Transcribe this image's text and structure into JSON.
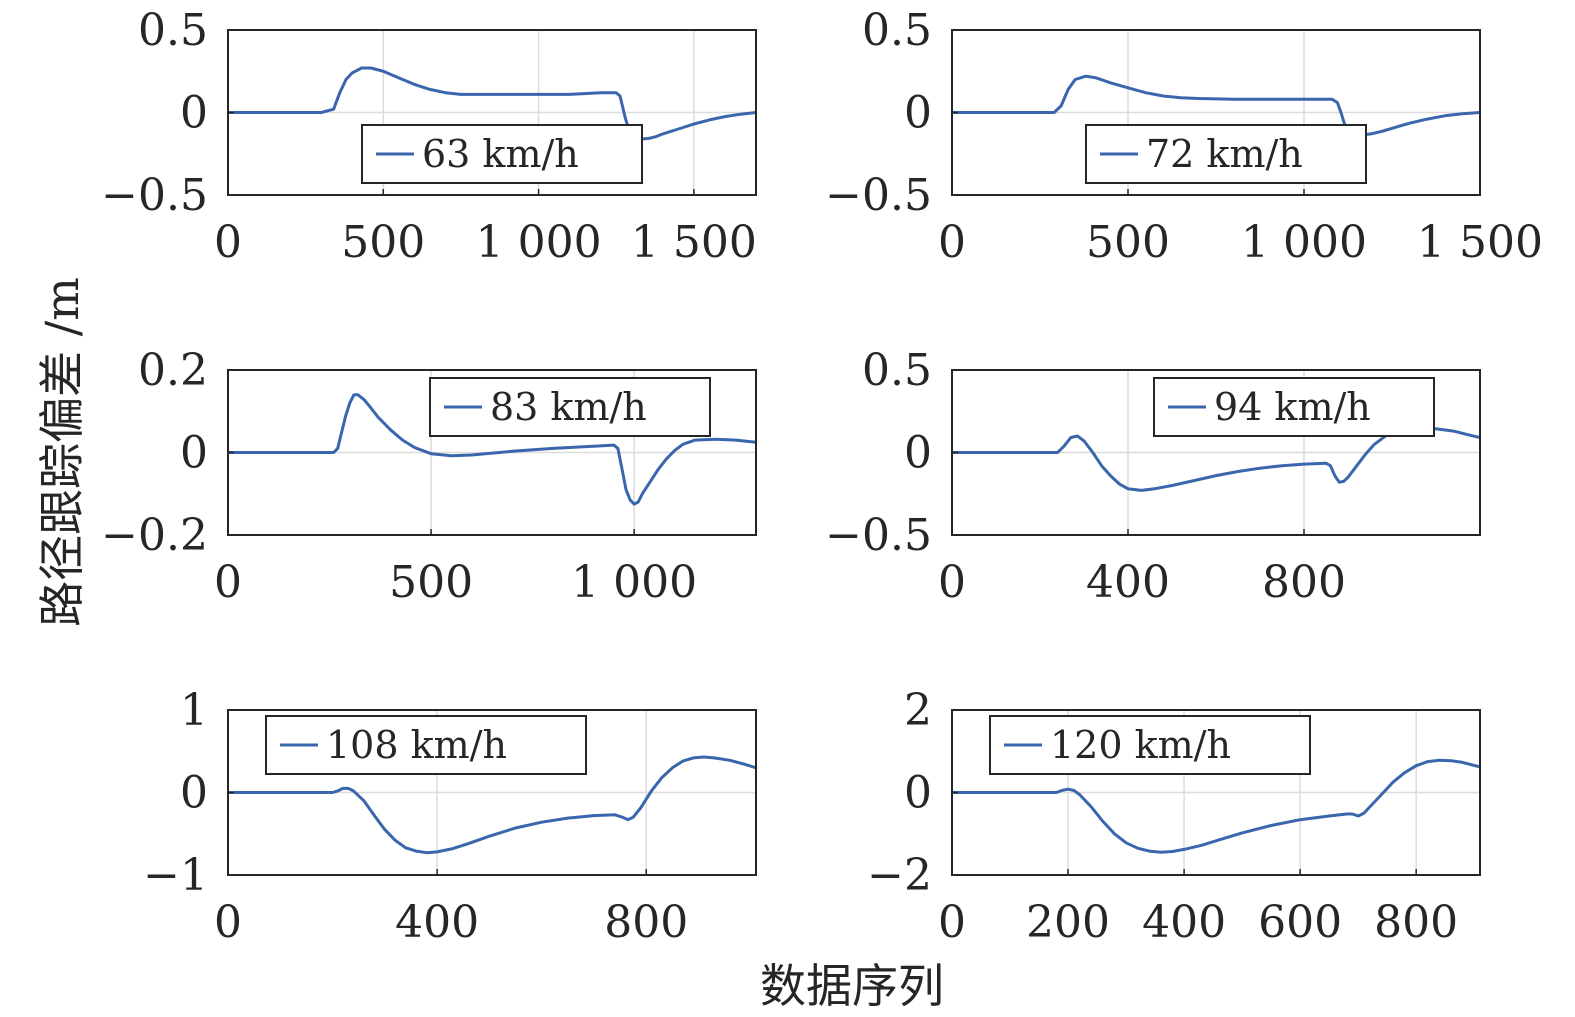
{
  "figure": {
    "ylabel": "路径跟踪偏差 /m",
    "xlabel": "数据序列",
    "series_color": "#3a66ad",
    "grid_color": "#dcdcdc"
  },
  "chart_data": [
    {
      "type": "line",
      "legend": "63 km/h",
      "legend_position": "bottom-center",
      "grid": true,
      "xlim": [
        0,
        1700
      ],
      "ylim": [
        -0.5,
        0.5
      ],
      "xticks": [
        0,
        500,
        1000,
        1500
      ],
      "xtick_labels": [
        "0",
        "500",
        "1 000",
        "1 500"
      ],
      "yticks": [
        -0.5,
        0,
        0.5
      ],
      "ytick_labels": [
        "−0.5",
        "0",
        "0.5"
      ],
      "series": [
        {
          "name": "63 km/h",
          "x": [
            0,
            300,
            340,
            360,
            380,
            400,
            430,
            460,
            500,
            550,
            600,
            650,
            700,
            750,
            800,
            900,
            1000,
            1100,
            1200,
            1250,
            1262,
            1270,
            1280,
            1290,
            1300,
            1320,
            1340,
            1360,
            1380,
            1400,
            1450,
            1500,
            1550,
            1600,
            1650,
            1700
          ],
          "y": [
            0,
            0,
            0.02,
            0.12,
            0.2,
            0.24,
            0.27,
            0.27,
            0.25,
            0.21,
            0.17,
            0.14,
            0.12,
            0.11,
            0.11,
            0.11,
            0.11,
            0.11,
            0.12,
            0.12,
            0.1,
            0.04,
            -0.04,
            -0.1,
            -0.13,
            -0.155,
            -0.16,
            -0.155,
            -0.145,
            -0.13,
            -0.1,
            -0.07,
            -0.045,
            -0.025,
            -0.01,
            0
          ]
        }
      ]
    },
    {
      "type": "line",
      "legend": "72 km/h",
      "legend_position": "bottom-center",
      "grid": true,
      "xlim": [
        0,
        1500
      ],
      "ylim": [
        -0.5,
        0.5
      ],
      "xticks": [
        0,
        500,
        1000,
        1500
      ],
      "xtick_labels": [
        "0",
        "500",
        "1 000",
        "1 500"
      ],
      "yticks": [
        -0.5,
        0,
        0.5
      ],
      "ytick_labels": [
        "−0.5",
        "0",
        "0.5"
      ],
      "series": [
        {
          "name": "72 km/h",
          "x": [
            0,
            290,
            310,
            330,
            350,
            380,
            410,
            450,
            500,
            550,
            600,
            650,
            700,
            800,
            900,
            1000,
            1080,
            1095,
            1105,
            1115,
            1130,
            1150,
            1170,
            1190,
            1220,
            1260,
            1300,
            1350,
            1400,
            1450,
            1500
          ],
          "y": [
            0,
            0,
            0.04,
            0.14,
            0.2,
            0.22,
            0.21,
            0.18,
            0.15,
            0.12,
            0.1,
            0.09,
            0.085,
            0.08,
            0.08,
            0.08,
            0.08,
            0.06,
            0.0,
            -0.07,
            -0.11,
            -0.13,
            -0.135,
            -0.13,
            -0.115,
            -0.09,
            -0.065,
            -0.04,
            -0.02,
            -0.007,
            0
          ]
        }
      ]
    },
    {
      "type": "line",
      "legend": "83 km/h",
      "legend_position": "top-right",
      "grid": true,
      "xlim": [
        0,
        1300
      ],
      "ylim": [
        -0.2,
        0.2
      ],
      "xticks": [
        0,
        500,
        1000
      ],
      "xtick_labels": [
        "0",
        "500",
        "1 000"
      ],
      "yticks": [
        -0.2,
        0,
        0.2
      ],
      "ytick_labels": [
        "−0.2",
        "0",
        "0.2"
      ],
      "series": [
        {
          "name": "83 km/h",
          "x": [
            0,
            260,
            270,
            280,
            290,
            300,
            310,
            320,
            335,
            350,
            370,
            400,
            430,
            460,
            500,
            550,
            600,
            700,
            800,
            900,
            950,
            960,
            970,
            980,
            990,
            1000,
            1010,
            1020,
            1040,
            1060,
            1080,
            1100,
            1120,
            1150,
            1200,
            1250,
            1300
          ],
          "y": [
            0,
            0,
            0.01,
            0.05,
            0.09,
            0.12,
            0.14,
            0.14,
            0.128,
            0.11,
            0.085,
            0.055,
            0.03,
            0.012,
            -0.003,
            -0.008,
            -0.006,
            0.003,
            0.01,
            0.015,
            0.018,
            0.01,
            -0.04,
            -0.09,
            -0.115,
            -0.125,
            -0.12,
            -0.1,
            -0.07,
            -0.04,
            -0.015,
            0.005,
            0.02,
            0.03,
            0.032,
            0.03,
            0.025
          ]
        }
      ]
    },
    {
      "type": "line",
      "legend": "94 km/h",
      "legend_position": "top-right",
      "grid": true,
      "xlim": [
        0,
        1200
      ],
      "ylim": [
        -0.5,
        0.5
      ],
      "xticks": [
        0,
        400,
        800
      ],
      "xtick_labels": [
        "0",
        "400",
        "800"
      ],
      "yticks": [
        -0.5,
        0,
        0.5
      ],
      "ytick_labels": [
        "−0.5",
        "0",
        "0.5"
      ],
      "series": [
        {
          "name": "94 km/h",
          "x": [
            0,
            240,
            255,
            270,
            285,
            300,
            320,
            340,
            360,
            380,
            400,
            430,
            460,
            500,
            550,
            600,
            650,
            700,
            750,
            800,
            850,
            860,
            870,
            880,
            890,
            900,
            920,
            940,
            960,
            990,
            1020,
            1050,
            1080,
            1110,
            1140,
            1170,
            1200
          ],
          "y": [
            0,
            0,
            0.04,
            0.09,
            0.1,
            0.07,
            0.0,
            -0.08,
            -0.14,
            -0.19,
            -0.22,
            -0.23,
            -0.22,
            -0.2,
            -0.17,
            -0.14,
            -0.115,
            -0.095,
            -0.08,
            -0.07,
            -0.065,
            -0.08,
            -0.14,
            -0.18,
            -0.175,
            -0.15,
            -0.08,
            -0.01,
            0.05,
            0.11,
            0.14,
            0.155,
            0.15,
            0.14,
            0.13,
            0.11,
            0.09
          ]
        }
      ]
    },
    {
      "type": "line",
      "legend": "108 km/h",
      "legend_position": "top-left",
      "grid": true,
      "xlim": [
        0,
        1010
      ],
      "ylim": [
        -1,
        1
      ],
      "xticks": [
        0,
        400,
        800
      ],
      "xtick_labels": [
        "0",
        "400",
        "800"
      ],
      "yticks": [
        -1,
        0,
        1
      ],
      "ytick_labels": [
        "−1",
        "0",
        "1"
      ],
      "series": [
        {
          "name": "108 km/h",
          "x": [
            0,
            200,
            210,
            220,
            230,
            240,
            260,
            280,
            300,
            320,
            340,
            360,
            380,
            400,
            430,
            460,
            500,
            550,
            600,
            650,
            700,
            740,
            755,
            765,
            775,
            790,
            810,
            830,
            850,
            870,
            890,
            910,
            930,
            960,
            990,
            1010
          ],
          "y": [
            0,
            0,
            0.02,
            0.05,
            0.05,
            0.02,
            -0.1,
            -0.28,
            -0.45,
            -0.58,
            -0.67,
            -0.71,
            -0.73,
            -0.72,
            -0.68,
            -0.62,
            -0.53,
            -0.43,
            -0.36,
            -0.31,
            -0.28,
            -0.27,
            -0.3,
            -0.33,
            -0.3,
            -0.18,
            0.02,
            0.18,
            0.3,
            0.38,
            0.42,
            0.43,
            0.42,
            0.39,
            0.34,
            0.3
          ]
        }
      ]
    },
    {
      "type": "line",
      "legend": "120 km/h",
      "legend_position": "top-left",
      "grid": true,
      "xlim": [
        0,
        910
      ],
      "ylim": [
        -2,
        2
      ],
      "xticks": [
        0,
        200,
        400,
        600,
        800
      ],
      "xtick_labels": [
        "0",
        "200",
        "400",
        "600",
        "800"
      ],
      "yticks": [
        -2,
        0,
        2
      ],
      "ytick_labels": [
        "−2",
        "0",
        "2"
      ],
      "series": [
        {
          "name": "120 km/h",
          "x": [
            0,
            180,
            190,
            200,
            210,
            220,
            240,
            260,
            280,
            300,
            320,
            340,
            360,
            380,
            400,
            430,
            460,
            500,
            550,
            600,
            650,
            680,
            690,
            700,
            710,
            720,
            740,
            760,
            780,
            800,
            820,
            840,
            860,
            880,
            910
          ],
          "y": [
            0,
            0,
            0.05,
            0.08,
            0.05,
            -0.05,
            -0.35,
            -0.7,
            -1.0,
            -1.22,
            -1.35,
            -1.42,
            -1.45,
            -1.43,
            -1.38,
            -1.28,
            -1.15,
            -0.98,
            -0.8,
            -0.66,
            -0.57,
            -0.52,
            -0.52,
            -0.57,
            -0.5,
            -0.35,
            -0.05,
            0.25,
            0.48,
            0.65,
            0.75,
            0.78,
            0.77,
            0.73,
            0.62
          ]
        }
      ]
    }
  ]
}
